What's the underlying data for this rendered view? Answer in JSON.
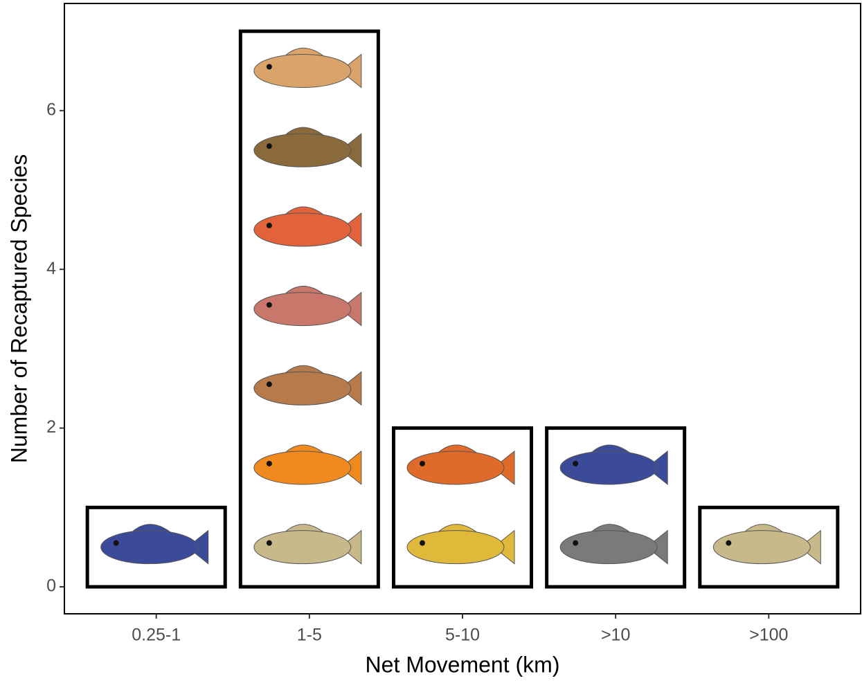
{
  "chart_data": {
    "type": "bar",
    "x_label": "Net Movement (km)",
    "y_label": "Number of Recaptured Species",
    "categories": [
      "0.25-1",
      "1-5",
      "5-10",
      ">10",
      ">100"
    ],
    "values": [
      1,
      7,
      2,
      2,
      1
    ],
    "color": "#ffffff",
    "ylim": [
      -0.34,
      7.35
    ],
    "yticks": [
      0,
      2,
      4,
      6
    ],
    "grid": false
  }
}
